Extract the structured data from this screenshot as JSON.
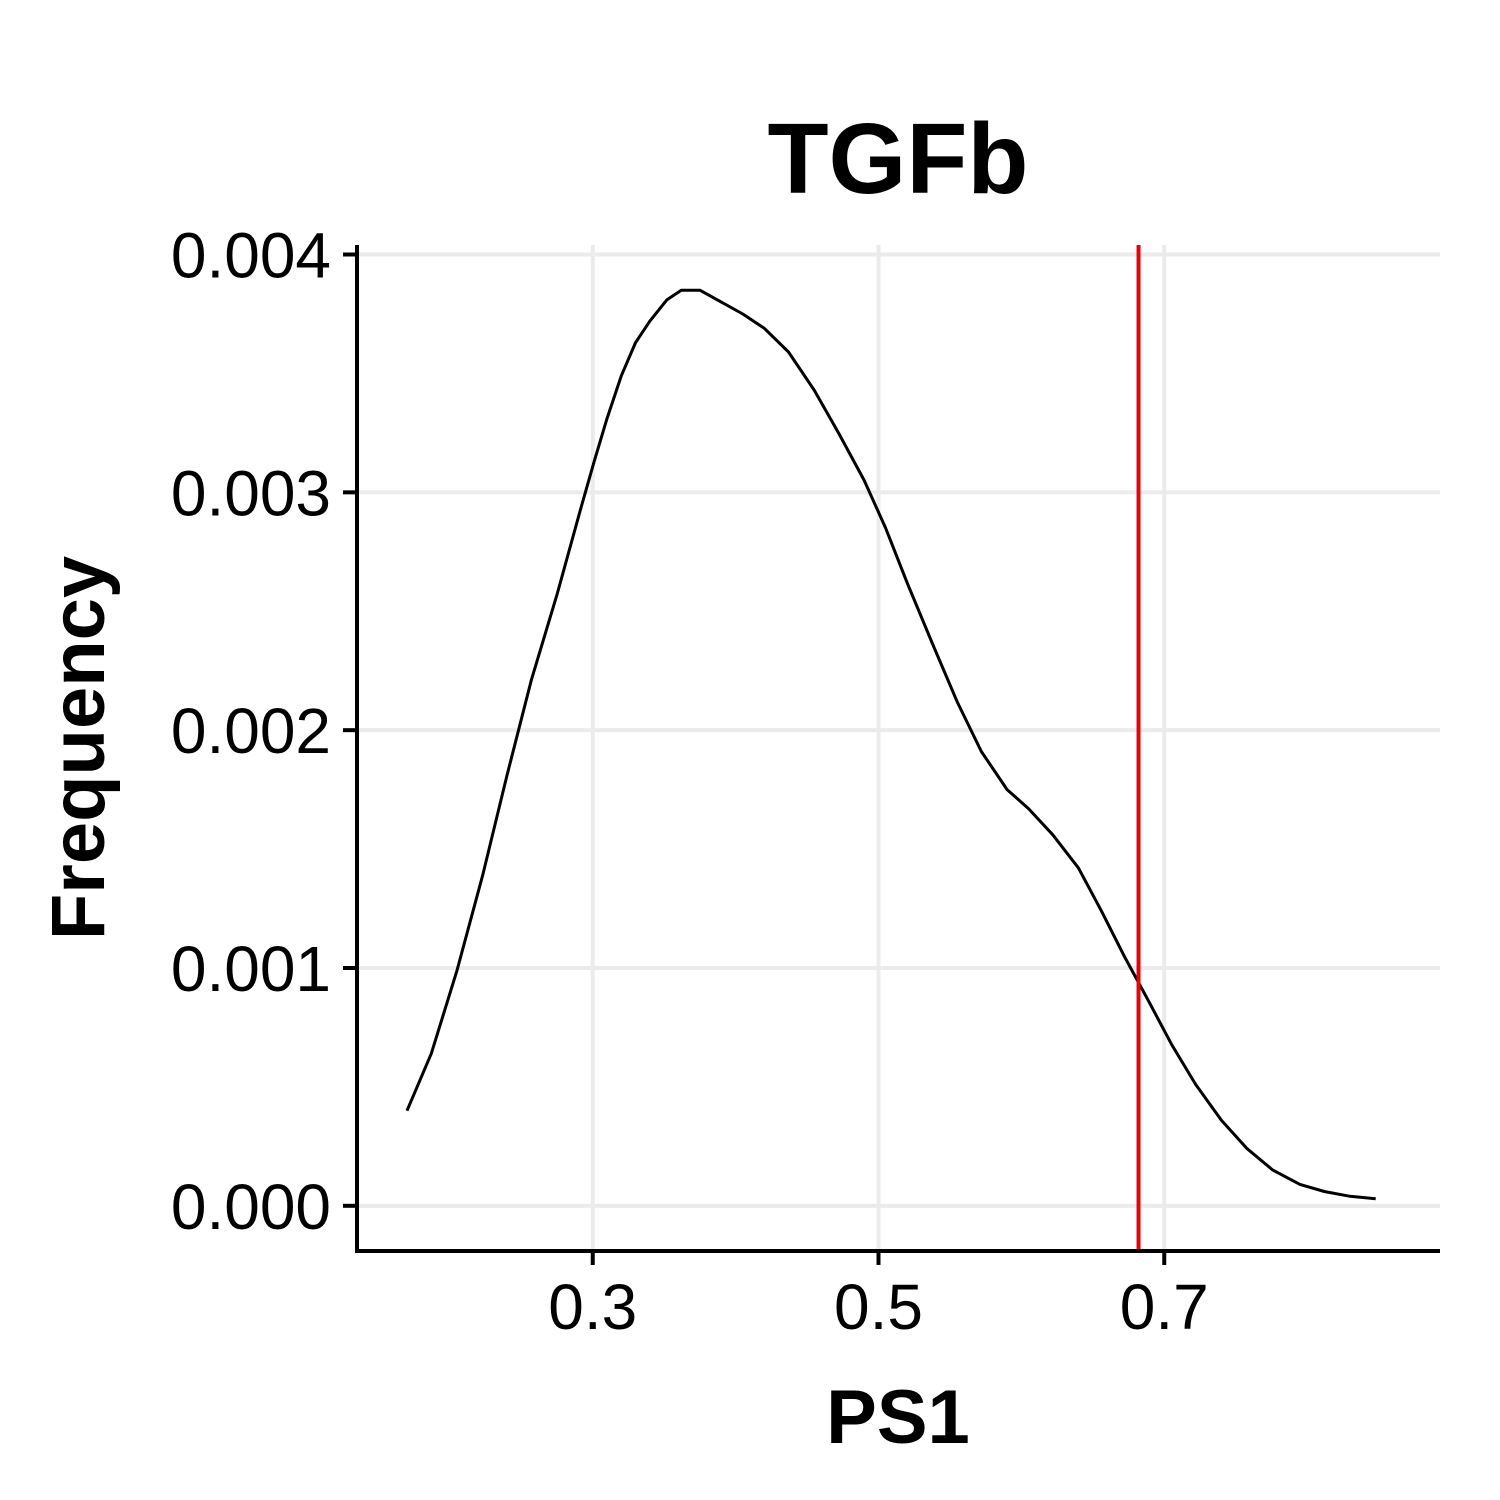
{
  "chart_data": {
    "type": "line",
    "title": "TGFb",
    "xlabel": "PS1",
    "ylabel": "Frequency",
    "xlim": [
      0.135,
      0.893
    ],
    "ylim": [
      -0.00019,
      0.00404
    ],
    "x_ticks": [
      {
        "value": 0.3,
        "label": "0.3"
      },
      {
        "value": 0.5,
        "label": "0.5"
      },
      {
        "value": 0.7,
        "label": "0.7"
      }
    ],
    "y_ticks": [
      {
        "value": 0.0,
        "label": "0.000"
      },
      {
        "value": 0.001,
        "label": "0.001"
      },
      {
        "value": 0.002,
        "label": "0.002"
      },
      {
        "value": 0.003,
        "label": "0.003"
      },
      {
        "value": 0.004,
        "label": "0.004"
      }
    ],
    "grid": true,
    "series": [
      {
        "color": "#000000",
        "x": [
          0.17,
          0.187,
          0.205,
          0.223,
          0.24,
          0.257,
          0.275,
          0.292,
          0.301,
          0.31,
          0.32,
          0.33,
          0.34,
          0.352,
          0.362,
          0.375,
          0.39,
          0.405,
          0.42,
          0.437,
          0.455,
          0.472,
          0.49,
          0.505,
          0.52,
          0.538,
          0.555,
          0.572,
          0.59,
          0.605,
          0.622,
          0.64,
          0.656,
          0.672,
          0.69,
          0.705,
          0.722,
          0.74,
          0.758,
          0.776,
          0.795,
          0.812,
          0.83,
          0.848
        ],
        "y": [
          0.0004,
          0.00064,
          0.00099,
          0.00139,
          0.00181,
          0.00221,
          0.00257,
          0.00294,
          0.00313,
          0.00331,
          0.00349,
          0.00363,
          0.00372,
          0.00381,
          0.00385,
          0.00385,
          0.0038,
          0.00375,
          0.00369,
          0.00359,
          0.00343,
          0.00325,
          0.00305,
          0.00285,
          0.00262,
          0.00236,
          0.00212,
          0.00191,
          0.00175,
          0.00167,
          0.00156,
          0.00142,
          0.00124,
          0.00105,
          0.00085,
          0.00068,
          0.00051,
          0.00036,
          0.00024,
          0.00015,
          9e-05,
          6e-05,
          4e-05,
          3e-05
        ]
      }
    ],
    "reference_line": {
      "axis": "x",
      "value": 0.682,
      "color": "#e8000b"
    }
  }
}
